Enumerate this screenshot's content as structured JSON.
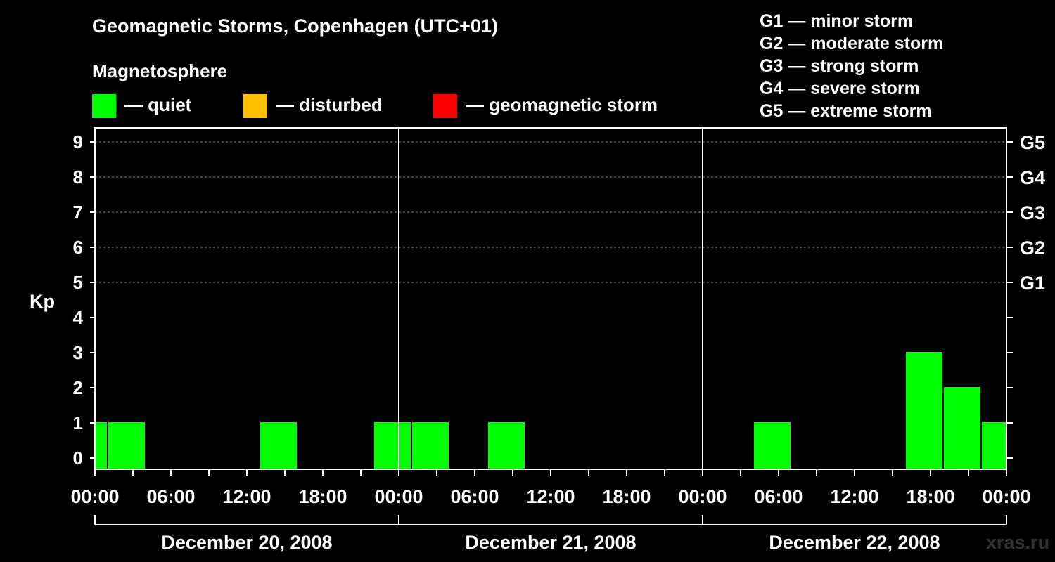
{
  "header": {
    "title": "Geomagnetic Storms, Copenhagen (UTC+01)",
    "subtitle": "Magnetosphere"
  },
  "legend": [
    {
      "label": "— quiet",
      "color": "#00ff00"
    },
    {
      "label": "— disturbed",
      "color": "#ffbf00"
    },
    {
      "label": "— geomagnetic storm",
      "color": "#ff0000"
    }
  ],
  "storm_scale": [
    "G1 — minor storm",
    "G2 — moderate storm",
    "G3 — strong storm",
    "G4 — severe storm",
    "G5 — extreme storm"
  ],
  "watermark": "xras.ru",
  "chart_data": {
    "type": "bar",
    "title": "Geomagnetic Storms, Copenhagen (UTC+01)",
    "ylabel": "Kp",
    "ylim": [
      0,
      9
    ],
    "yticks": [
      "0",
      "1",
      "2",
      "3",
      "4",
      "5",
      "6",
      "7",
      "8",
      "9"
    ],
    "x_unit": "hours since 2008-12-20 00:00 (UTC+01)",
    "xlim": [
      0,
      72
    ],
    "xtick_labels": [
      "00:00",
      "06:00",
      "12:00",
      "18:00",
      "00:00",
      "06:00",
      "12:00",
      "18:00",
      "00:00",
      "06:00",
      "12:00",
      "18:00",
      "00:00"
    ],
    "day_labels": [
      "December 20, 2008",
      "December 21, 2008",
      "December 22, 2008"
    ],
    "storm_levels": [
      {
        "label": "G1",
        "kp": 5
      },
      {
        "label": "G2",
        "kp": 6
      },
      {
        "label": "G3",
        "kp": 7
      },
      {
        "label": "G4",
        "kp": 8
      },
      {
        "label": "G5",
        "kp": 9
      }
    ],
    "bars": [
      {
        "start": 0,
        "end": 1,
        "kp": 1,
        "status": "quiet"
      },
      {
        "start": 1,
        "end": 4,
        "kp": 1,
        "status": "quiet"
      },
      {
        "start": 13,
        "end": 16,
        "kp": 1,
        "status": "quiet"
      },
      {
        "start": 22,
        "end": 25,
        "kp": 1,
        "status": "quiet"
      },
      {
        "start": 25,
        "end": 28,
        "kp": 1,
        "status": "quiet"
      },
      {
        "start": 31,
        "end": 34,
        "kp": 1,
        "status": "quiet"
      },
      {
        "start": 52,
        "end": 55,
        "kp": 1,
        "status": "quiet"
      },
      {
        "start": 64,
        "end": 67,
        "kp": 3,
        "status": "quiet"
      },
      {
        "start": 67,
        "end": 70,
        "kp": 2,
        "status": "quiet"
      },
      {
        "start": 70,
        "end": 72,
        "kp": 1,
        "status": "quiet"
      }
    ]
  }
}
